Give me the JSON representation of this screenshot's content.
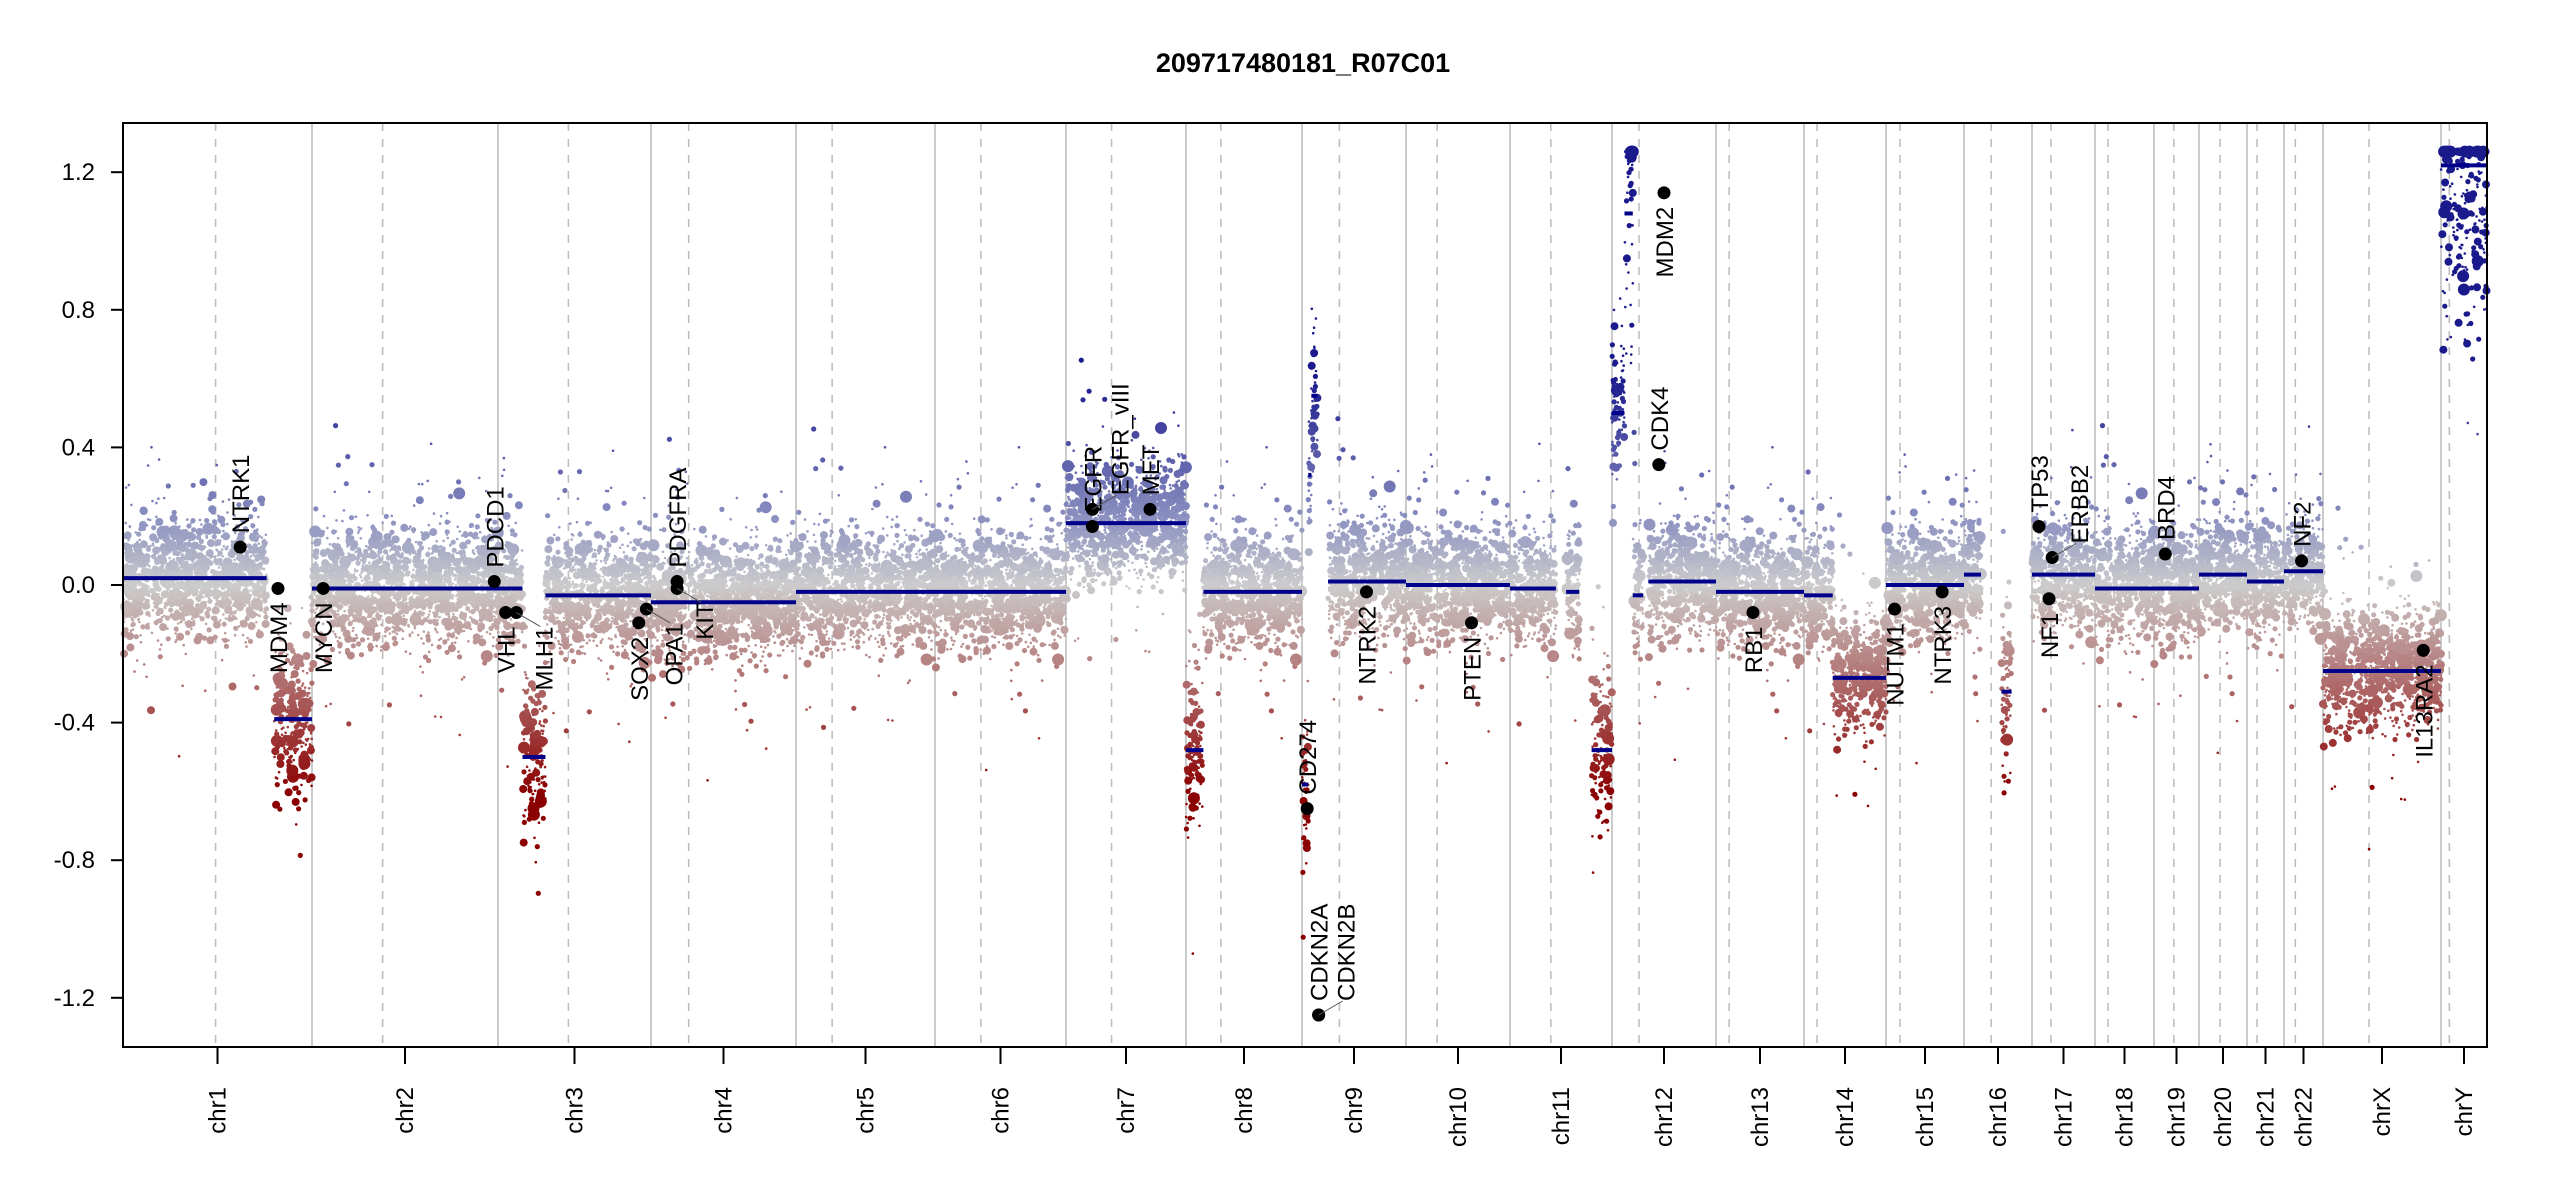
{
  "chart_data": {
    "type": "scatter",
    "title": "209717480181_R07C01",
    "xlabel": "",
    "ylabel": "",
    "ylim": [
      -1.35,
      1.35
    ],
    "yticks": [
      -1.2,
      -0.8,
      -0.4,
      0.0,
      0.4,
      0.8,
      1.2
    ],
    "ytick_labels": [
      "-1.2",
      "-0.8",
      "-0.4",
      "0.0",
      "0.4",
      "0.8",
      "1.2"
    ],
    "grid": false,
    "chromosomes": [
      {
        "name": "chr1",
        "label": "chr1",
        "length": 249,
        "centromere": 0.49
      },
      {
        "name": "chr2",
        "label": "chr2",
        "length": 243,
        "centromere": 0.38
      },
      {
        "name": "chr3",
        "label": "chr3",
        "length": 198,
        "centromere": 0.46
      },
      {
        "name": "chr4",
        "label": "chr4",
        "length": 191,
        "centromere": 0.26
      },
      {
        "name": "chr5",
        "label": "chr5",
        "length": 181,
        "centromere": 0.26
      },
      {
        "name": "chr6",
        "label": "chr6",
        "length": 171,
        "centromere": 0.35
      },
      {
        "name": "chr7",
        "label": "chr7",
        "length": 159,
        "centromere": 0.38
      },
      {
        "name": "chr8",
        "label": "chr8",
        "length": 146,
        "centromere": 0.3
      },
      {
        "name": "chr9",
        "label": "chr9",
        "length": 138,
        "centromere": 0.36
      },
      {
        "name": "chr10",
        "label": "chr10",
        "length": 134,
        "centromere": 0.3
      },
      {
        "name": "chr11",
        "label": "chr11",
        "length": 135,
        "centromere": 0.4
      },
      {
        "name": "chr12",
        "label": "chr12",
        "length": 133,
        "centromere": 0.26
      },
      {
        "name": "chr13",
        "label": "chr13",
        "length": 115,
        "centromere": 0.15
      },
      {
        "name": "chr14",
        "label": "chr14",
        "length": 107,
        "centromere": 0.16
      },
      {
        "name": "chr15",
        "label": "chr15",
        "length": 102,
        "centromere": 0.18
      },
      {
        "name": "chr16",
        "label": "chr16",
        "length": 90,
        "centromere": 0.4
      },
      {
        "name": "chr17",
        "label": "chr17",
        "length": 81,
        "centromere": 0.3
      },
      {
        "name": "chr18",
        "label": "chr18",
        "length": 78,
        "centromere": 0.22
      },
      {
        "name": "chr19",
        "label": "chr19",
        "length": 59,
        "centromere": 0.44
      },
      {
        "name": "chr20",
        "label": "chr20",
        "length": 63,
        "centromere": 0.44
      },
      {
        "name": "chr21",
        "label": "chr21",
        "length": 48,
        "centromere": 0.27
      },
      {
        "name": "chr22",
        "label": "chr22",
        "length": 51,
        "centromere": 0.29
      },
      {
        "name": "chrX",
        "label": "chrX",
        "length": 155,
        "centromere": 0.39
      },
      {
        "name": "chrY",
        "label": "chrY",
        "length": 59,
        "centromere": 0.18
      }
    ],
    "segments": [
      {
        "chr": "chr1",
        "start": 0.0,
        "end": 0.76,
        "value": 0.02
      },
      {
        "chr": "chr1",
        "start": 0.8,
        "end": 1.0,
        "value": -0.39
      },
      {
        "chr": "chr2",
        "start": 0.0,
        "end": 1.0,
        "value": -0.01
      },
      {
        "chr": "chr3",
        "start": 0.0,
        "end": 0.16,
        "value": -0.01
      },
      {
        "chr": "chr3",
        "start": 0.16,
        "end": 0.31,
        "value": -0.5
      },
      {
        "chr": "chr3",
        "start": 0.31,
        "end": 1.0,
        "value": -0.03
      },
      {
        "chr": "chr4",
        "start": 0.0,
        "end": 1.0,
        "value": -0.05
      },
      {
        "chr": "chr5",
        "start": 0.0,
        "end": 1.0,
        "value": -0.02
      },
      {
        "chr": "chr6",
        "start": 0.0,
        "end": 1.0,
        "value": -0.02
      },
      {
        "chr": "chr7",
        "start": 0.0,
        "end": 1.0,
        "value": 0.18
      },
      {
        "chr": "chr8",
        "start": 0.0,
        "end": 0.15,
        "value": -0.48
      },
      {
        "chr": "chr8",
        "start": 0.15,
        "end": 1.0,
        "value": -0.02
      },
      {
        "chr": "chr9",
        "start": 0.0,
        "end": 0.06,
        "value": -0.58
      },
      {
        "chr": "chr9",
        "start": 0.06,
        "end": 0.09,
        "value": 0.32
      },
      {
        "chr": "chr9",
        "start": 0.09,
        "end": 0.15,
        "value": 0.55
      },
      {
        "chr": "chr9",
        "start": 0.25,
        "end": 1.0,
        "value": 0.01
      },
      {
        "chr": "chr10",
        "start": 0.0,
        "end": 1.0,
        "value": 0.0
      },
      {
        "chr": "chr11",
        "start": 0.0,
        "end": 0.45,
        "value": -0.01
      },
      {
        "chr": "chr11",
        "start": 0.55,
        "end": 0.68,
        "value": -0.02
      },
      {
        "chr": "chr11",
        "start": 0.8,
        "end": 1.0,
        "value": -0.48
      },
      {
        "chr": "chr12",
        "start": 0.0,
        "end": 0.12,
        "value": 0.5
      },
      {
        "chr": "chr12",
        "start": 0.12,
        "end": 0.2,
        "value": 1.08
      },
      {
        "chr": "chr12",
        "start": 0.2,
        "end": 0.3,
        "value": -0.03
      },
      {
        "chr": "chr12",
        "start": 0.35,
        "end": 1.0,
        "value": 0.01
      },
      {
        "chr": "chr13",
        "start": 0.0,
        "end": 1.0,
        "value": -0.02
      },
      {
        "chr": "chr14",
        "start": 0.0,
        "end": 0.35,
        "value": -0.03
      },
      {
        "chr": "chr14",
        "start": 0.35,
        "end": 1.0,
        "value": -0.27
      },
      {
        "chr": "chr15",
        "start": 0.0,
        "end": 1.0,
        "value": 0.0
      },
      {
        "chr": "chr16",
        "start": 0.0,
        "end": 0.25,
        "value": 0.03
      },
      {
        "chr": "chr16",
        "start": 0.55,
        "end": 0.7,
        "value": -0.31
      },
      {
        "chr": "chr17",
        "start": 0.0,
        "end": 1.0,
        "value": 0.03
      },
      {
        "chr": "chr18",
        "start": 0.0,
        "end": 1.0,
        "value": -0.01
      },
      {
        "chr": "chr19",
        "start": 0.0,
        "end": 1.0,
        "value": -0.01
      },
      {
        "chr": "chr20",
        "start": 0.0,
        "end": 1.0,
        "value": 0.03
      },
      {
        "chr": "chr21",
        "start": 0.0,
        "end": 1.0,
        "value": 0.01
      },
      {
        "chr": "chr22",
        "start": 0.0,
        "end": 1.0,
        "value": 0.04
      },
      {
        "chr": "chrX",
        "start": 0.0,
        "end": 1.0,
        "value": -0.25
      },
      {
        "chr": "chrY",
        "start": 0.0,
        "end": 1.0,
        "value": 1.22
      }
    ],
    "genes": [
      {
        "name": "NTRK1",
        "chr": "chr1",
        "pos": 0.62,
        "value": 0.11
      },
      {
        "name": "MDM4",
        "chr": "chr1",
        "pos": 0.82,
        "value": -0.01
      },
      {
        "name": "MYCN",
        "chr": "chr2",
        "pos": 0.06,
        "value": -0.01
      },
      {
        "name": "PDCD1",
        "chr": "chr2",
        "pos": 0.98,
        "value": 0.01
      },
      {
        "name": "VHL",
        "chr": "chr3",
        "pos": 0.05,
        "value": -0.08
      },
      {
        "name": "MLH1",
        "chr": "chr3",
        "pos": 0.12,
        "value": -0.08
      },
      {
        "name": "SOX2",
        "chr": "chr3",
        "pos": 0.92,
        "value": -0.11
      },
      {
        "name": "OPA1",
        "chr": "chr3",
        "pos": 0.97,
        "value": -0.07
      },
      {
        "name": "PDGFRA",
        "chr": "chr4",
        "pos": 0.18,
        "value": 0.01
      },
      {
        "name": "KIT",
        "chr": "chr4",
        "pos": 0.18,
        "value": -0.01
      },
      {
        "name": "EGFR",
        "chr": "chr7",
        "pos": 0.22,
        "value": 0.17
      },
      {
        "name": "EGFR_vIII",
        "chr": "chr7",
        "pos": 0.22,
        "value": 0.22
      },
      {
        "name": "MET",
        "chr": "chr7",
        "pos": 0.7,
        "value": 0.22
      },
      {
        "name": "CD274",
        "chr": "chr9",
        "pos": 0.05,
        "value": -0.65
      },
      {
        "name": "CDKN2A",
        "chr": "chr9",
        "pos": 0.16,
        "value": -1.25
      },
      {
        "name": "CDKN2B",
        "chr": "chr9",
        "pos": 0.16,
        "value": -1.25
      },
      {
        "name": "NTRK2",
        "chr": "chr9",
        "pos": 0.62,
        "value": -0.02
      },
      {
        "name": "PTEN",
        "chr": "chr10",
        "pos": 0.63,
        "value": -0.11
      },
      {
        "name": "CDK4",
        "chr": "chr12",
        "pos": 0.45,
        "value": 0.35
      },
      {
        "name": "MDM2",
        "chr": "chr12",
        "pos": 0.5,
        "value": 1.14
      },
      {
        "name": "RB1",
        "chr": "chr13",
        "pos": 0.42,
        "value": -0.08
      },
      {
        "name": "NUTM1",
        "chr": "chr15",
        "pos": 0.11,
        "value": -0.07
      },
      {
        "name": "NTRK3",
        "chr": "chr15",
        "pos": 0.72,
        "value": -0.02
      },
      {
        "name": "TP53",
        "chr": "chr17",
        "pos": 0.11,
        "value": 0.17
      },
      {
        "name": "ERBB2",
        "chr": "chr17",
        "pos": 0.32,
        "value": 0.08
      },
      {
        "name": "NF1",
        "chr": "chr17",
        "pos": 0.27,
        "value": -0.04
      },
      {
        "name": "BRD4",
        "chr": "chr19",
        "pos": 0.25,
        "value": 0.09
      },
      {
        "name": "NF2",
        "chr": "chr22",
        "pos": 0.45,
        "value": 0.07
      },
      {
        "name": "IL13RA2",
        "chr": "chrX",
        "pos": 0.85,
        "value": -0.19
      }
    ],
    "colors": {
      "gain": "#1a1a8c",
      "gain_mid": "#8a8fc0",
      "neutral": "#cccccc",
      "loss_mid": "#b37878",
      "loss": "#8b0000",
      "segment": "#00008b",
      "gene_point": "#000000",
      "chrom_boundary": "#bebebe",
      "centromere": "#bebebe"
    }
  }
}
